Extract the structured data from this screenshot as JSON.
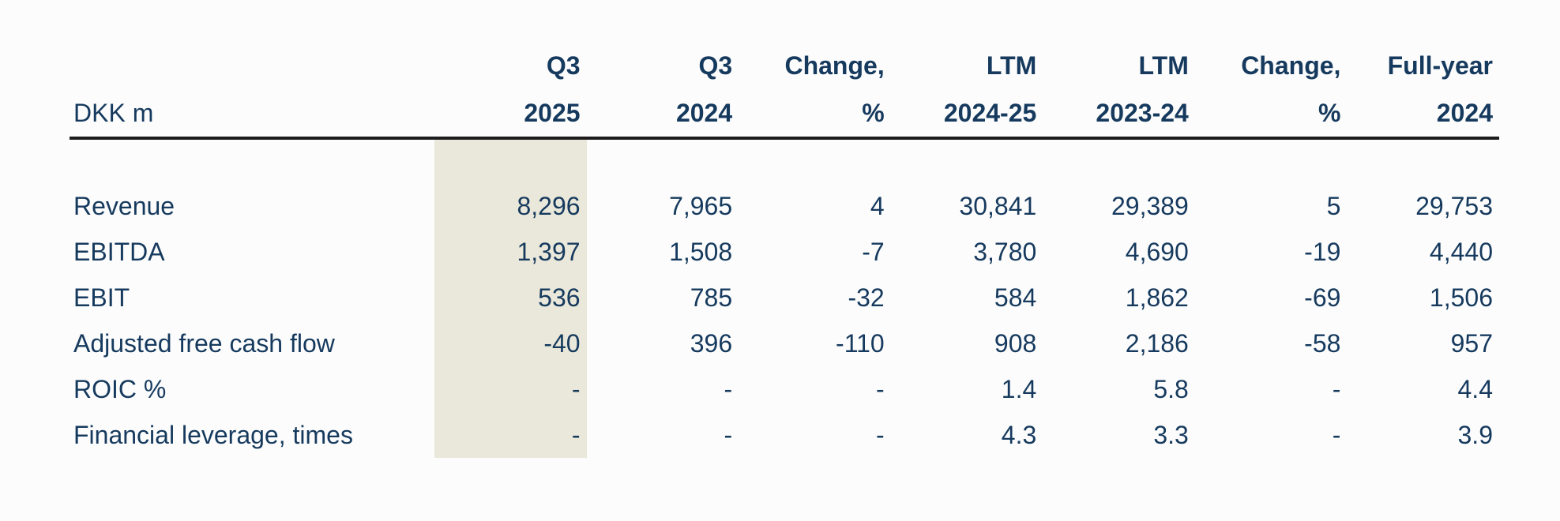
{
  "colors": {
    "text_navy": "#163a5e",
    "header_rule": "#1c1c1c",
    "column_highlight_beige": "#eae8da",
    "background": "#fcfcfc"
  },
  "table": {
    "unit_label": "DKK m",
    "highlighted_column": "Q3 2025",
    "columns": [
      {
        "line1": "Q3",
        "line2": "2025"
      },
      {
        "line1": "Q3",
        "line2": "2024"
      },
      {
        "line1": "Change,",
        "line2": "%"
      },
      {
        "line1": "LTM",
        "line2": "2024-25"
      },
      {
        "line1": "LTM",
        "line2": "2023-24"
      },
      {
        "line1": "Change,",
        "line2": "%"
      },
      {
        "line1": "Full-year",
        "line2": "2024"
      }
    ],
    "rows": [
      {
        "label": "Revenue",
        "values": [
          "8,296",
          "7,965",
          "4",
          "30,841",
          "29,389",
          "5",
          "29,753"
        ]
      },
      {
        "label": "EBITDA",
        "values": [
          "1,397",
          "1,508",
          "-7",
          "3,780",
          "4,690",
          "-19",
          "4,440"
        ]
      },
      {
        "label": "EBIT",
        "values": [
          "536",
          "785",
          "-32",
          "584",
          "1,862",
          "-69",
          "1,506"
        ]
      },
      {
        "label": "Adjusted free cash flow",
        "values": [
          "-40",
          "396",
          "-110",
          "908",
          "2,186",
          "-58",
          "957"
        ]
      },
      {
        "label": "ROIC %",
        "values": [
          "-",
          "-",
          "-",
          "1.4",
          "5.8",
          "-",
          "4.4"
        ]
      },
      {
        "label": "Financial leverage, times",
        "values": [
          "-",
          "-",
          "-",
          "4.3",
          "3.3",
          "-",
          "3.9"
        ]
      }
    ]
  }
}
